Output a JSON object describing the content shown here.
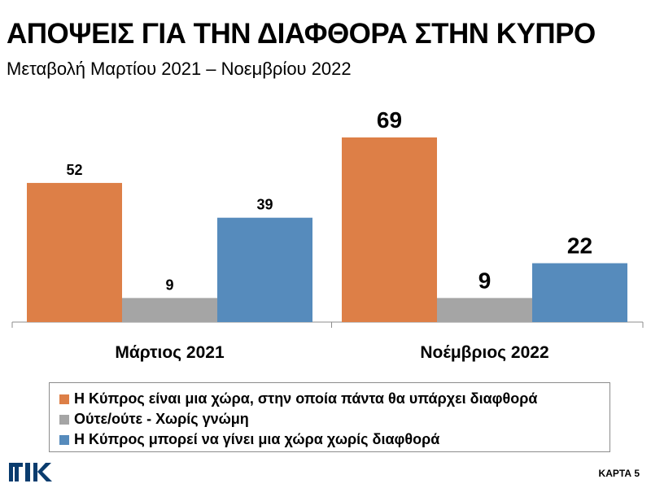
{
  "header": {
    "title": "ΑΠΟΨΕΙΣ ΓΙΑ ΤΗΝ ΔΙΑΦΘΟΡΑ ΣΤΗΝ ΚΥΠΡΟ",
    "subtitle": "Μεταβολή Μαρτίου 2021 – Νοεμβρίου 2022"
  },
  "footer": {
    "card_label": "ΚΑΡΤΑ 5",
    "logo_text": "ΡΙΚ"
  },
  "colors": {
    "orange": "#DD7F47",
    "gray": "#A5A5A5",
    "blue": "#568BBC",
    "logo": "#0A3C6E"
  },
  "chart_data": {
    "type": "bar",
    "title": "ΑΠΟΨΕΙΣ ΓΙΑ ΤΗΝ ΔΙΑΦΘΟΡΑ ΣΤΗΝ ΚΥΠΡΟ",
    "subtitle": "Μεταβολή Μαρτίου 2021 – Νοεμβρίου 2022",
    "categories": [
      "Μάρτιος 2021",
      "Νοέμβριος 2022"
    ],
    "series": [
      {
        "name": "Η Κύπρος είναι μια χώρα, στην οποία πάντα θα υπάρχει διαφθορά",
        "values": [
          52,
          69
        ],
        "color": "#DD7F47"
      },
      {
        "name": "Ούτε/ούτε - Χωρίς γνώμη",
        "values": [
          9,
          9
        ],
        "color": "#A5A5A5"
      },
      {
        "name": "Η Κύπρος μπορεί να γίνει μια χώρα χωρίς διαφθορά",
        "values": [
          39,
          22
        ],
        "color": "#568BBC"
      }
    ],
    "data_labels": true,
    "legend_position": "bottom",
    "grid": false,
    "xlabel": "",
    "ylabel": ""
  }
}
